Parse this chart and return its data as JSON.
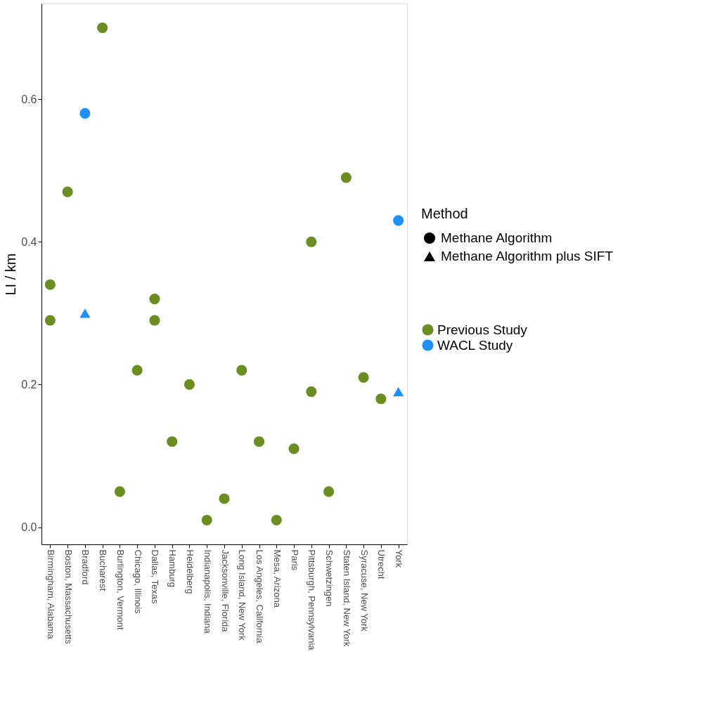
{
  "chart_data": {
    "type": "scatter",
    "ylabel": "LI / km",
    "legend_title": "Method",
    "legend": "right",
    "grid": false,
    "categories": [
      "Birmingham, Alabama",
      "Boston, Massachusetts",
      "Bradford",
      "Bucharest",
      "Burlington, Vermont",
      "Chicago, Illinois",
      "Dallas, Texas",
      "Hamburg",
      "Heidelberg",
      "Indianapolis, Indiana",
      "Jacksonville, Florida",
      "Long Island, New York",
      "Los Angeles, California",
      "Mesa, Arizona",
      "Paris",
      "Pittsburgh, Pennsylvania",
      "Schwetzingen",
      "Staten Island, New York",
      "Syracuse, New York",
      "Utrecht",
      "York"
    ],
    "ylim": [
      -0.024,
      0.734
    ],
    "yticks": [
      {
        "value": 0,
        "label": "0.0"
      },
      0.2,
      0.4,
      0.6
    ],
    "series": [
      {
        "name": "Previous Study",
        "color": "#6b8e23",
        "marker": "circle",
        "x": [
          "Birmingham, Alabama",
          "Birmingham, Alabama",
          "Boston, Massachusetts",
          "Bucharest",
          "Burlington, Vermont",
          "Chicago, Illinois",
          "Dallas, Texas",
          "Dallas, Texas",
          "Hamburg",
          "Heidelberg",
          "Indianapolis, Indiana",
          "Jacksonville, Florida",
          "Long Island, New York",
          "Los Angeles, California",
          "Mesa, Arizona",
          "Paris",
          "Pittsburgh, Pennsylvania",
          "Pittsburgh, Pennsylvania",
          "Schwetzingen",
          "Staten Island, New York",
          "Syracuse, New York",
          "Utrecht"
        ],
        "values": [
          0.34,
          0.29,
          0.47,
          0.7,
          0.05,
          0.22,
          0.32,
          0.29,
          0.12,
          0.2,
          0.01,
          0.04,
          0.22,
          0.12,
          0.01,
          0.11,
          0.4,
          0.19,
          0.05,
          0.49,
          0.21,
          0.18
        ]
      },
      {
        "name": "WACL Study",
        "color": "#1e90ff",
        "marker": "circle",
        "x": [
          "Bradford",
          "York"
        ],
        "values": [
          0.58,
          0.43
        ]
      },
      {
        "color": "#1e90ff",
        "marker": "triangle",
        "x": [
          "Bradford",
          "York"
        ],
        "values": [
          0.3,
          0.19
        ]
      },
      {
        "name": "Methane Algorithm",
        "color": "#000000",
        "marker": "circle",
        "values": [
          null,
          null,
          null,
          null,
          null,
          null,
          null,
          null,
          null,
          null,
          null,
          null,
          null,
          null,
          null,
          null,
          null,
          null,
          null,
          null,
          null
        ]
      },
      {
        "name": "Methane Algorithm plus SIFT",
        "color": "#000000",
        "marker": "triangle",
        "values": [
          null,
          null,
          null,
          null,
          null,
          null,
          null,
          null,
          null,
          null,
          null,
          null,
          null,
          null,
          null,
          null,
          null,
          null,
          null,
          null,
          null
        ]
      }
    ]
  }
}
